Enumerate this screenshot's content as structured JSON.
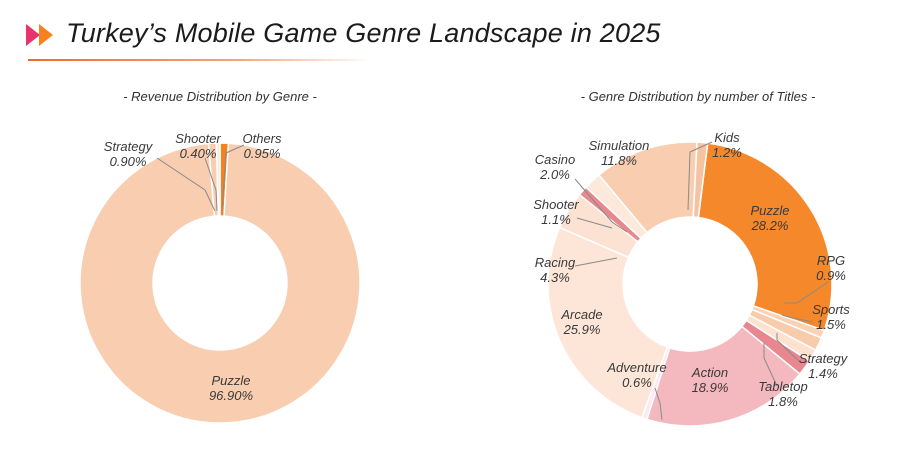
{
  "header": {
    "title": "Turkey’s Mobile Game Genre Landscape in 2025",
    "icon": "double-chevron-icon",
    "accent_color": "#f26a2a"
  },
  "chart_data": [
    {
      "type": "pie",
      "subtitle": "- Revenue Distribution by Genre -",
      "donut": true,
      "slices": [
        {
          "name": "Others",
          "value": 0.95,
          "label": "0.95%",
          "color": "#f5821f"
        },
        {
          "name": "Puzzle",
          "value": 96.9,
          "label": "96.90%",
          "color": "#f8cdb0"
        },
        {
          "name": "Strategy",
          "value": 0.9,
          "label": "0.90%",
          "color": "#f8cdb0"
        },
        {
          "name": "Shooter",
          "value": 0.4,
          "label": "0.40%",
          "color": "#fde7db"
        }
      ]
    },
    {
      "type": "pie",
      "subtitle": "- Genre Distribution by number of Titles -",
      "donut": true,
      "slices": [
        {
          "name": "Puzzle",
          "value": 28.2,
          "label": "28.2%",
          "color": "#f5882b"
        },
        {
          "name": "RPG",
          "value": 0.9,
          "label": "0.9%",
          "color": "#fad3b6"
        },
        {
          "name": "Sports",
          "value": 1.5,
          "label": "1.5%",
          "color": "#f8cbab"
        },
        {
          "name": "Strategy",
          "value": 1.4,
          "label": "1.4%",
          "color": "#fde2d0"
        },
        {
          "name": "Tabletop",
          "value": 1.8,
          "label": "1.8%",
          "color": "#e9878f"
        },
        {
          "name": "Action",
          "value": 18.9,
          "label": "18.9%",
          "color": "#f4b8bf"
        },
        {
          "name": "Adventure",
          "value": 0.6,
          "label": "0.6%",
          "color": "#fdeaf0"
        },
        {
          "name": "Arcade",
          "value": 25.9,
          "label": "25.9%",
          "color": "#fde6d7"
        },
        {
          "name": "Racing",
          "value": 4.3,
          "label": "4.3%",
          "color": "#fbe2d2"
        },
        {
          "name": "Shooter",
          "value": 1.1,
          "label": "1.1%",
          "color": "#e9878f"
        },
        {
          "name": "Casino",
          "value": 2.0,
          "label": "2.0%",
          "color": "#fde9dc"
        },
        {
          "name": "Simulation",
          "value": 11.8,
          "label": "11.8%",
          "color": "#f8cdb0"
        },
        {
          "name": "Kids",
          "value": 1.2,
          "label": "1.2%",
          "color": "#f5c3a1"
        }
      ]
    }
  ]
}
